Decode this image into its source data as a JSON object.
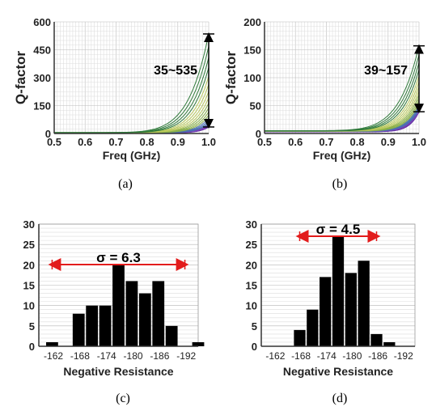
{
  "chart_data": [
    {
      "type": "line",
      "panel": "(a)",
      "xlabel": "Freq (GHz)",
      "ylabel": "Q-factor",
      "xlim": [
        0.5,
        1.0
      ],
      "ylim": [
        0,
        600
      ],
      "xticks": [
        "0.5",
        "0.6",
        "0.7",
        "0.8",
        "0.9",
        "1.0"
      ],
      "yticks": [
        "0",
        "150",
        "300",
        "450",
        "600"
      ],
      "annotation": "35~535",
      "range_at_1GHz": [
        35,
        535
      ],
      "grid": true,
      "series_colors": [
        "#5b2d9c",
        "#7a3fb8",
        "#4a6fb0",
        "#8ab04a",
        "#b8c85a",
        "#2f7a3a"
      ]
    },
    {
      "type": "line",
      "panel": "(b)",
      "xlabel": "Freq (GHz)",
      "ylabel": "Q-factor",
      "xlim": [
        0.5,
        1.0
      ],
      "ylim": [
        0,
        200
      ],
      "xticks": [
        "0.5",
        "0.6",
        "0.7",
        "0.8",
        "0.9",
        "1.0"
      ],
      "yticks": [
        "0",
        "50",
        "100",
        "150",
        "200"
      ],
      "annotation": "39~157",
      "range_at_1GHz": [
        39,
        157
      ],
      "grid": true,
      "series_colors": [
        "#5b2d9c",
        "#7a3fb8",
        "#4a6fb0",
        "#8ab04a",
        "#b8c85a",
        "#2f7a3a"
      ]
    },
    {
      "type": "bar",
      "panel": "(c)",
      "xlabel": "Negative Resistance",
      "ylim": [
        0,
        30
      ],
      "yticks": [
        "0",
        "5",
        "10",
        "15",
        "20",
        "25",
        "30"
      ],
      "xticks": [
        "-162",
        "-168",
        "-174",
        "-180",
        "-186",
        "-192"
      ],
      "categories": [
        -162,
        -165,
        -168,
        -171,
        -174,
        -177,
        -180,
        -183,
        -186,
        -189,
        -192,
        -195
      ],
      "values": [
        1,
        0,
        8,
        10,
        10,
        20,
        16,
        13,
        16,
        5,
        0,
        1
      ],
      "annotation": "σ = 6.3",
      "sigma_span": [
        -162,
        -192
      ],
      "grid": true
    },
    {
      "type": "bar",
      "panel": "(d)",
      "xlabel": "Negative Resistance",
      "ylim": [
        0,
        30
      ],
      "yticks": [
        "0",
        "5",
        "10",
        "15",
        "20",
        "25",
        "30"
      ],
      "xticks": [
        "-162",
        "-168",
        "-174",
        "-180",
        "-186",
        "-192"
      ],
      "categories": [
        -162,
        -165,
        -168,
        -171,
        -174,
        -177,
        -180,
        -183,
        -186,
        -189,
        -192
      ],
      "values": [
        0,
        0,
        4,
        9,
        17,
        27,
        18,
        21,
        3,
        1,
        0
      ],
      "annotation": "σ = 4.5",
      "sigma_span": [
        -168,
        -186
      ],
      "grid": true
    }
  ],
  "captions": [
    "(a)",
    "(b)",
    "(c)",
    "(d)"
  ]
}
